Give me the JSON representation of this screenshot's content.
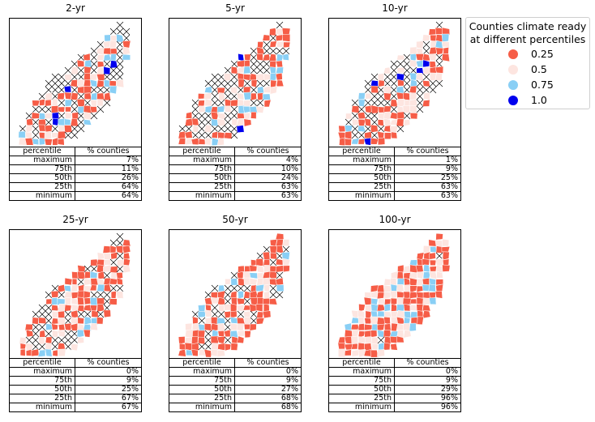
{
  "chart_data": {
    "type": "table",
    "columns": [
      "percentile",
      "% counties"
    ],
    "rows": [
      "maximum",
      "75th",
      "50th",
      "25th",
      "minimum"
    ],
    "panels": [
      {
        "title": "2-yr",
        "values": [
          "7%",
          "11%",
          "26%",
          "64%",
          "64%"
        ]
      },
      {
        "title": "5-yr",
        "values": [
          "4%",
          "10%",
          "24%",
          "63%",
          "63%"
        ]
      },
      {
        "title": "10-yr",
        "values": [
          "1%",
          "9%",
          "25%",
          "63%",
          "63%"
        ]
      },
      {
        "title": "25-yr",
        "values": [
          "0%",
          "9%",
          "25%",
          "67%",
          "67%"
        ]
      },
      {
        "title": "50-yr",
        "values": [
          "0%",
          "9%",
          "27%",
          "68%",
          "68%"
        ]
      },
      {
        "title": "100-yr",
        "values": [
          "0%",
          "9%",
          "29%",
          "96%",
          "96%"
        ]
      }
    ],
    "map_hatch_density": [
      0.38,
      0.36,
      0.33,
      0.26,
      0.24,
      0.02
    ],
    "map_blue_density": [
      0.1,
      0.07,
      0.06,
      0.0,
      0.0,
      0.0
    ],
    "legend": {
      "title": "Counties climate ready\n at different percentiles",
      "entries": [
        {
          "label": "0.25",
          "color": "#f65d47"
        },
        {
          "label": "0.5",
          "color": "#fde5e0"
        },
        {
          "label": "0.75",
          "color": "#89cff5"
        },
        {
          "label": "1.0",
          "color": "#0000ee"
        }
      ]
    }
  }
}
